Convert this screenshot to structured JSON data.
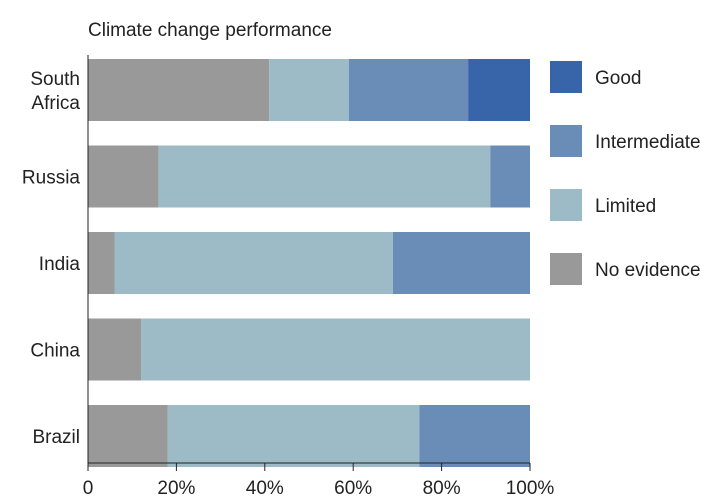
{
  "chart_data": {
    "type": "bar",
    "orientation": "horizontal",
    "stacked": true,
    "title": "Climate change performance",
    "xlabel": "",
    "ylabel": "",
    "xlim": [
      0,
      100
    ],
    "x_ticks": [
      "0",
      "20%",
      "40%",
      "60%",
      "80%",
      "100%"
    ],
    "categories": [
      {
        "label": [
          "South",
          "Africa"
        ]
      },
      {
        "label": [
          "Russia"
        ]
      },
      {
        "label": [
          "India"
        ]
      },
      {
        "label": [
          "China"
        ]
      },
      {
        "label": [
          "Brazil"
        ]
      }
    ],
    "series": [
      {
        "name": "No evidence",
        "color": "#999999",
        "values": [
          41,
          16,
          6,
          12,
          18
        ]
      },
      {
        "name": "Limited",
        "color": "#9dbbc7",
        "values": [
          18,
          75,
          63,
          88,
          57
        ]
      },
      {
        "name": "Intermediate",
        "color": "#6a8db8",
        "values": [
          27,
          9,
          31,
          0,
          25
        ]
      },
      {
        "name": "Good",
        "color": "#3864a9",
        "values": [
          14,
          0,
          0,
          0,
          0
        ]
      }
    ],
    "legend": {
      "position": "right",
      "order": [
        "Good",
        "Intermediate",
        "Limited",
        "No evidence"
      ]
    },
    "grid": false
  }
}
